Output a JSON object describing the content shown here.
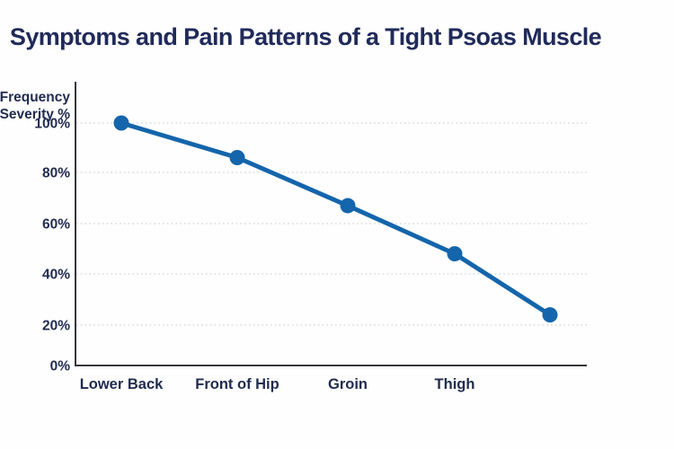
{
  "chart_data": {
    "type": "line",
    "title": "Symptoms and Pain Patterns of a Tight Psoas Muscle",
    "categories": [
      "Lower Back",
      "Front of Hip",
      "Groin",
      "Thigh",
      ""
    ],
    "values": [
      100,
      86,
      67,
      48,
      24
    ],
    "ylabel_lines": [
      "Frequency",
      "/ Severity %"
    ],
    "yticks": [
      {
        "value": 0,
        "label": "0%"
      },
      {
        "value": 20,
        "label": "20%"
      },
      {
        "value": 40,
        "label": "40%"
      },
      {
        "value": 60,
        "label": "60%"
      },
      {
        "value": 80,
        "label": "80%"
      },
      {
        "value": 100,
        "label": "100%"
      }
    ],
    "ylim": [
      0,
      100
    ],
    "grid": "horizontal dotted",
    "legend_position": "none",
    "colors": {
      "line": "#1465ab",
      "marker": "#1465ab",
      "title_text": "#202a5a",
      "axis": "#35353d",
      "gridline": "#cfd3d8",
      "tick_text": "#222c50",
      "category_text": "#222c50",
      "background": "#fefefe"
    }
  }
}
